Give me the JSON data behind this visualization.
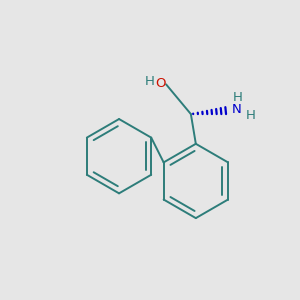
{
  "background_color": "#e6e6e6",
  "bond_color": "#2d7d7a",
  "oh_h_color": "#2d7d7a",
  "oh_o_color": "#cc1100",
  "nh2_color": "#0000cc",
  "nh2_n_color": "#2d7d7a",
  "figsize": [
    3.0,
    3.0
  ],
  "dpi": 100,
  "lw": 1.4,
  "r1": 0.3,
  "r2": 0.3,
  "rc": [
    0.52,
    -0.4
  ],
  "lc": [
    -0.1,
    -0.2
  ],
  "xlim": [
    -1.05,
    1.35
  ],
  "ylim": [
    -1.15,
    0.85
  ]
}
